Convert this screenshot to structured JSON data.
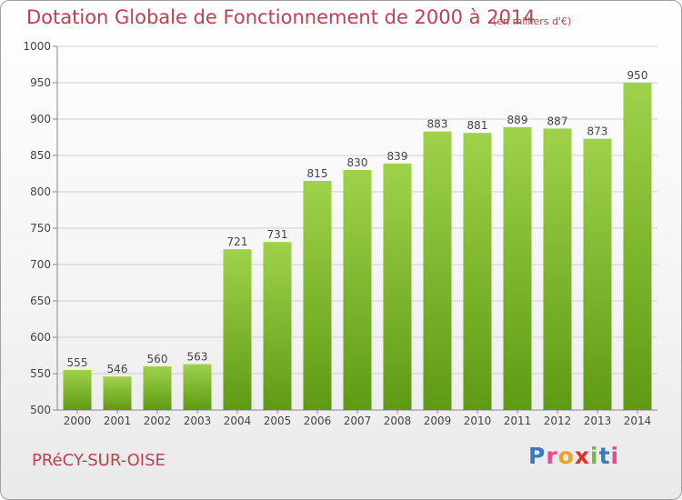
{
  "header": {
    "title": "Dotation Globale de Fonctionnement de 2000 à 2014",
    "subtitle": "(en milliers d'€)"
  },
  "footer": {
    "place": "PRéCY-SUR-OISE",
    "logo_text": "Proxiti",
    "logo_colors": [
      "#3a78c8",
      "#e84a8a",
      "#f5a020",
      "#e03030",
      "#7ab648",
      "#3a78c8",
      "#e84a8a"
    ]
  },
  "colors": {
    "bar_top": "#9fd24a",
    "bar_bottom": "#5f9a14",
    "grid": "#d0d0d0",
    "axis": "#888888",
    "label": "#444444"
  },
  "chart_data": {
    "type": "bar",
    "categories": [
      "2000",
      "2001",
      "2002",
      "2003",
      "2004",
      "2005",
      "2006",
      "2007",
      "2008",
      "2009",
      "2010",
      "2011",
      "2012",
      "2013",
      "2014"
    ],
    "values": [
      555,
      546,
      560,
      563,
      721,
      731,
      815,
      830,
      839,
      883,
      881,
      889,
      887,
      873,
      950
    ],
    "ylim": [
      500,
      1000
    ],
    "yticks": [
      500,
      550,
      600,
      650,
      700,
      750,
      800,
      850,
      900,
      950,
      1000
    ],
    "grid": true,
    "legend": "none"
  }
}
